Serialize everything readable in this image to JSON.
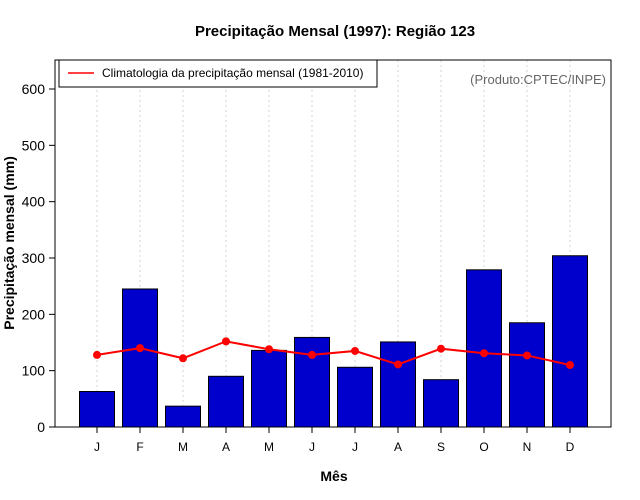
{
  "chart_data": {
    "type": "bar",
    "title": "Precipitação Mensal (1997): Região 123",
    "xlabel": "Mês",
    "ylabel": "Precipitação mensal (mm)",
    "categories": [
      "J",
      "F",
      "M",
      "A",
      "M",
      "J",
      "J",
      "A",
      "S",
      "O",
      "N",
      "D"
    ],
    "ylim": [
      0,
      650
    ],
    "yticks": [
      0,
      100,
      200,
      300,
      400,
      500,
      600
    ],
    "grid": "vertical dashed",
    "series": [
      {
        "name": "Precipitação mensal 1997",
        "type": "bar",
        "color": "#0000CD",
        "values": [
          63,
          245,
          37,
          90,
          136,
          159,
          106,
          151,
          84,
          279,
          185,
          304
        ]
      },
      {
        "name": "Climatologia da precipitação mensal (1981-2010)",
        "type": "line",
        "color": "#FF0000",
        "values": [
          128,
          140,
          122,
          152,
          138,
          128,
          135,
          111,
          139,
          131,
          127,
          110
        ]
      }
    ],
    "legend": {
      "position": "top-left",
      "entries": [
        "Climatologia da precipitação mensal (1981-2010)"
      ]
    },
    "annotation": "(Produto:CPTEC/INPE)"
  }
}
